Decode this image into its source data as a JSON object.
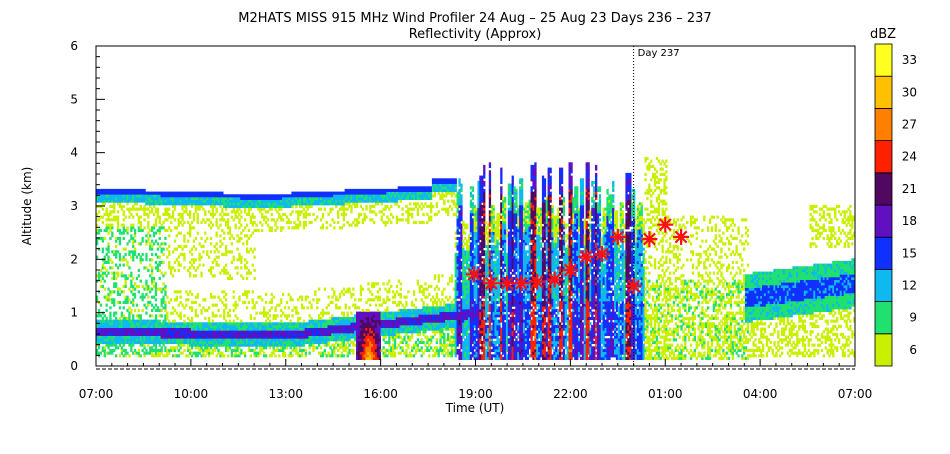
{
  "chart_data": {
    "type": "heatmap",
    "title": "M2HATS MISS 915 MHz Wind Profiler  24 Aug – 25 Aug 23 Days 236 – 237",
    "subtitle": "Reflectivity (Approx)",
    "xlabel": "Time (UT)",
    "ylabel": "Altitude (km)",
    "x_range_hours": [
      7,
      31
    ],
    "x_ticks": [
      {
        "t": 7,
        "label": "07:00"
      },
      {
        "t": 10,
        "label": "10:00"
      },
      {
        "t": 13,
        "label": "13:00"
      },
      {
        "t": 16,
        "label": "16:00"
      },
      {
        "t": 19,
        "label": "19:00"
      },
      {
        "t": 22,
        "label": "22:00"
      },
      {
        "t": 25,
        "label": "01:00"
      },
      {
        "t": 28,
        "label": "04:00"
      },
      {
        "t": 31,
        "label": "07:00"
      }
    ],
    "ylim": [
      0,
      6
    ],
    "y_ticks": [
      {
        "v": 0,
        "label": "0"
      },
      {
        "v": 1,
        "label": "1"
      },
      {
        "v": 2,
        "label": "2"
      },
      {
        "v": 3,
        "label": "3"
      },
      {
        "v": 4,
        "label": "4"
      },
      {
        "v": 5,
        "label": "5"
      },
      {
        "v": 6,
        "label": "6"
      }
    ],
    "day_marker": {
      "t": 24.0,
      "label": "Day 237"
    },
    "colorbar": {
      "label": "dBZ",
      "levels": [
        {
          "value": 6,
          "label": "6",
          "color": "#c8f000"
        },
        {
          "value": 9,
          "label": "9",
          "color": "#20e070"
        },
        {
          "value": 12,
          "label": "12",
          "color": "#10b8f0"
        },
        {
          "value": 15,
          "label": "15",
          "color": "#1030ff"
        },
        {
          "value": 18,
          "label": "18",
          "color": "#6010c0"
        },
        {
          "value": 21,
          "label": "21",
          "color": "#500860"
        },
        {
          "value": 24,
          "label": "24",
          "color": "#ff2000"
        },
        {
          "value": 27,
          "label": "27",
          "color": "#ff8000"
        },
        {
          "value": 30,
          "label": "30",
          "color": "#ffc000"
        },
        {
          "value": 33,
          "label": "33",
          "color": "#ffff20"
        }
      ]
    },
    "markers": [
      {
        "t": 18.95,
        "alt": 1.72
      },
      {
        "t": 19.5,
        "alt": 1.55
      },
      {
        "t": 20.0,
        "alt": 1.55
      },
      {
        "t": 20.45,
        "alt": 1.55
      },
      {
        "t": 20.95,
        "alt": 1.58
      },
      {
        "t": 21.5,
        "alt": 1.62
      },
      {
        "t": 22.0,
        "alt": 1.8
      },
      {
        "t": 22.5,
        "alt": 2.05
      },
      {
        "t": 23.0,
        "alt": 2.1
      },
      {
        "t": 23.5,
        "alt": 2.42
      },
      {
        "t": 24.0,
        "alt": 1.5
      },
      {
        "t": 24.5,
        "alt": 2.38
      },
      {
        "t": 25.0,
        "alt": 2.65
      },
      {
        "t": 25.5,
        "alt": 2.42
      }
    ],
    "features": [
      {
        "name": "cloud-top-layer",
        "t0": 7.0,
        "t1": 18.4,
        "alt_top_start": 3.3,
        "alt_top_end": 3.5,
        "dbz": 12
      },
      {
        "name": "boundary-layer",
        "t0": 7.0,
        "t1": 19.0,
        "alt": 0.6,
        "dbz": 15
      },
      {
        "name": "convective-core",
        "t0": 15.3,
        "t1": 16.0,
        "alt": 0.4,
        "dbz": 30
      },
      {
        "name": "rain-columns",
        "t0": 19.0,
        "t1": 24.2,
        "alt_top": 3.8,
        "dbz": 15
      },
      {
        "name": "late-layer",
        "t0": 27.5,
        "t1": 31.0,
        "alt": 1.5,
        "dbz": 15
      }
    ]
  }
}
